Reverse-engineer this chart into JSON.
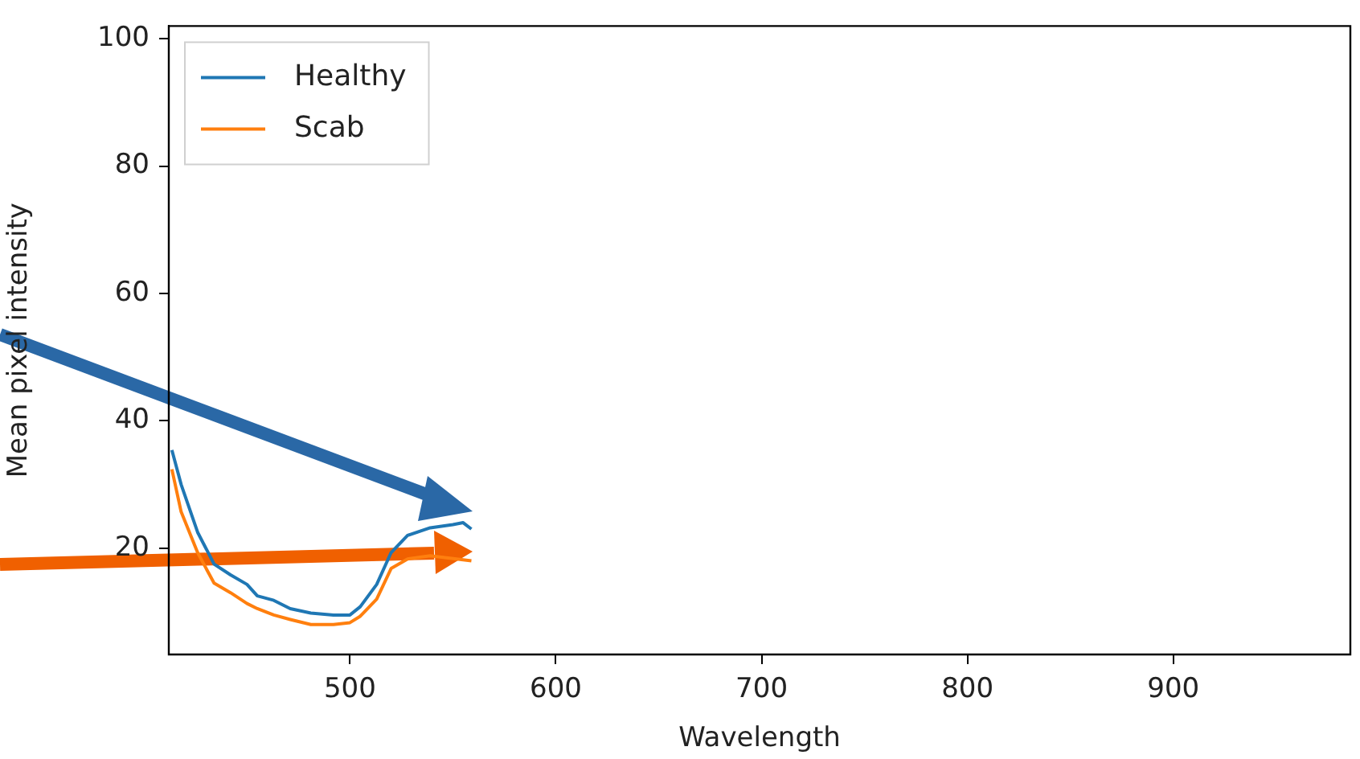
{
  "chart_data": {
    "type": "line",
    "xlabel": "Wavelength",
    "ylabel": "Mean pixel intensity",
    "xlim": [
      412,
      986
    ],
    "xticks": [
      500,
      600,
      700,
      800,
      900
    ],
    "ylim": [
      3.3,
      102
    ],
    "yticks": [
      20,
      40,
      60,
      80,
      100
    ],
    "grid": false,
    "legend": "top left",
    "marker": "none",
    "line_style": "solid",
    "series": [
      {
        "name": "Healthy",
        "color": "#1f77b4",
        "x": [
          413.5,
          418,
          426,
          434,
          442,
          450,
          455,
          463,
          471,
          481,
          492,
          500,
          505,
          513,
          520,
          528,
          539,
          550,
          555,
          559
        ],
        "values": [
          35.4,
          30,
          22.5,
          17.5,
          15.8,
          14.3,
          12.5,
          11.8,
          10.5,
          9.8,
          9.5,
          9.5,
          10.8,
          14.3,
          19.3,
          22,
          23.2,
          23.7,
          24,
          23
        ]
      },
      {
        "name": "Scab",
        "color": "#ff7f0e",
        "x": [
          413.5,
          418,
          426,
          434,
          442,
          450,
          455,
          463,
          471,
          481,
          492,
          500,
          505,
          513,
          520,
          528,
          539,
          550,
          555,
          559
        ],
        "values": [
          32.4,
          25.7,
          19.3,
          14.5,
          13,
          11.3,
          10.5,
          9.5,
          8.8,
          8,
          8,
          8.3,
          9.3,
          12,
          16.8,
          18.3,
          18.8,
          null,
          null,
          18
        ]
      }
    ]
  }
}
